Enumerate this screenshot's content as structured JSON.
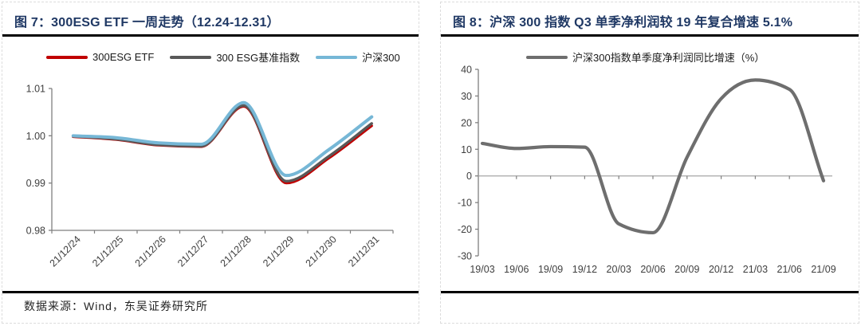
{
  "figure_left": {
    "title": "图 7：300ESG ETF 一周走势（12.24-12.31）",
    "source_note": "数据来源：Wind，东吴证券研究所"
  },
  "figure_right": {
    "title": "图 8：沪深 300 指数 Q3 单季净利润较 19 年复合增速 5.1%"
  },
  "colors": {
    "title_navy": "#1F3864",
    "rule_black": "#000000",
    "axis_gray": "#7F7F7F",
    "tick_text": "#3F3F3F",
    "zero_line": "#A6A6A6",
    "etf_red": "#C00000",
    "benchmark_gray": "#595959",
    "hs300_blue": "#76B7D6",
    "profit_gray": "#6E6E6E"
  },
  "chart_data": [
    {
      "type": "line",
      "title": "300ESG ETF 一周走势",
      "categories": [
        "21/12/24",
        "21/12/25",
        "21/12/26",
        "21/12/27",
        "21/12/28",
        "21/12/29",
        "21/12/30",
        "21/12/31"
      ],
      "series": [
        {
          "name": "300ESG ETF",
          "color": "#C00000",
          "values": [
            0.9998,
            0.9992,
            0.998,
            0.9977,
            1.0062,
            0.99,
            0.9953,
            1.0021
          ]
        },
        {
          "name": "300 ESG基准指数",
          "color": "#595959",
          "values": [
            0.9999,
            0.9993,
            0.9981,
            0.9978,
            1.0064,
            0.9904,
            0.9957,
            1.0026
          ]
        },
        {
          "name": "沪深300",
          "color": "#76B7D6",
          "values": [
            1.0,
            0.9996,
            0.9985,
            0.9982,
            1.007,
            0.9916,
            0.9971,
            1.004
          ]
        }
      ],
      "ylim": [
        0.98,
        1.01
      ],
      "ytick_step": 0.01,
      "y_decimals": 2,
      "xlabel": "",
      "ylabel": "",
      "grid": false,
      "legend_position": "top",
      "x_label_rotation": -45
    },
    {
      "type": "line",
      "title": "沪深300指数单季度净利润同比增速",
      "categories": [
        "19/03",
        "19/06",
        "19/09",
        "19/12",
        "20/03",
        "20/06",
        "20/09",
        "20/12",
        "21/03",
        "21/06",
        "21/09"
      ],
      "series": [
        {
          "name": "沪深300指数单季度净利润同比增速（%）",
          "color": "#6E6E6E",
          "values": [
            12.2,
            10.3,
            11.0,
            10.8,
            -18.0,
            -21.3,
            7.0,
            29.0,
            36.0,
            32.5,
            -1.8
          ]
        }
      ],
      "ylim": [
        -30,
        40
      ],
      "ytick_step": 10,
      "y_decimals": 0,
      "xlabel": "",
      "ylabel": "",
      "grid": false,
      "legend_position": "top",
      "x_label_rotation": 0
    }
  ]
}
